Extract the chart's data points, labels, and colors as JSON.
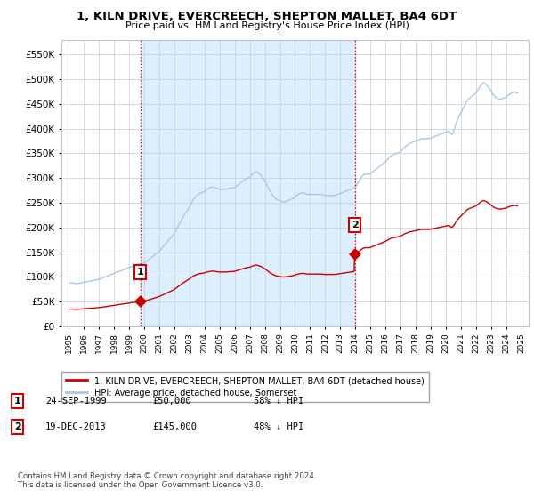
{
  "title": "1, KILN DRIVE, EVERCREECH, SHEPTON MALLET, BA4 6DT",
  "subtitle": "Price paid vs. HM Land Registry's House Price Index (HPI)",
  "sale1_year": 1999.73,
  "sale1_value": 50000,
  "sale2_year": 2013.96,
  "sale2_value": 145000,
  "hpi_color": "#a8c8e8",
  "sale_color": "#cc0000",
  "vline_color": "#cc0000",
  "fill_color": "#ddeeff",
  "ylim": [
    0,
    580000
  ],
  "yticks": [
    0,
    50000,
    100000,
    150000,
    200000,
    250000,
    300000,
    350000,
    400000,
    450000,
    500000,
    550000
  ],
  "ytick_labels": [
    "£0",
    "£50K",
    "£100K",
    "£150K",
    "£200K",
    "£250K",
    "£300K",
    "£350K",
    "£400K",
    "£450K",
    "£500K",
    "£550K"
  ],
  "xtick_years": [
    1995,
    1996,
    1997,
    1998,
    1999,
    2000,
    2001,
    2002,
    2003,
    2004,
    2005,
    2006,
    2007,
    2008,
    2009,
    2010,
    2011,
    2012,
    2013,
    2014,
    2015,
    2016,
    2017,
    2018,
    2019,
    2020,
    2021,
    2022,
    2023,
    2024,
    2025
  ],
  "legend_sale_label": "1, KILN DRIVE, EVERCREECH, SHEPTON MALLET, BA4 6DT (detached house)",
  "legend_hpi_label": "HPI: Average price, detached house, Somerset",
  "table_data": [
    {
      "num": "1",
      "date": "24-SEP-1999",
      "price": "£50,000",
      "hpi": "58% ↓ HPI"
    },
    {
      "num": "2",
      "date": "19-DEC-2013",
      "price": "£145,000",
      "hpi": "48% ↓ HPI"
    }
  ],
  "footnote": "Contains HM Land Registry data © Crown copyright and database right 2024.\nThis data is licensed under the Open Government Licence v3.0.",
  "bg_color": "#ffffff",
  "grid_color": "#cccccc",
  "hpi_monthly": [
    [
      1995.0,
      87000
    ],
    [
      1995.083,
      87500
    ],
    [
      1995.167,
      88000
    ],
    [
      1995.25,
      87500
    ],
    [
      1995.333,
      87000
    ],
    [
      1995.417,
      86500
    ],
    [
      1995.5,
      86000
    ],
    [
      1995.583,
      86500
    ],
    [
      1995.667,
      87000
    ],
    [
      1995.75,
      87500
    ],
    [
      1995.833,
      88000
    ],
    [
      1995.917,
      88500
    ],
    [
      1996.0,
      89000
    ],
    [
      1996.083,
      89500
    ],
    [
      1996.167,
      90000
    ],
    [
      1996.25,
      90500
    ],
    [
      1996.333,
      91000
    ],
    [
      1996.417,
      91500
    ],
    [
      1996.5,
      92000
    ],
    [
      1996.583,
      92500
    ],
    [
      1996.667,
      93000
    ],
    [
      1996.75,
      93500
    ],
    [
      1996.833,
      94000
    ],
    [
      1996.917,
      94500
    ],
    [
      1997.0,
      95000
    ],
    [
      1997.083,
      96000
    ],
    [
      1997.167,
      97000
    ],
    [
      1997.25,
      98000
    ],
    [
      1997.333,
      99000
    ],
    [
      1997.417,
      100000
    ],
    [
      1997.5,
      101000
    ],
    [
      1997.583,
      102000
    ],
    [
      1997.667,
      103000
    ],
    [
      1997.75,
      104000
    ],
    [
      1997.833,
      105000
    ],
    [
      1997.917,
      106000
    ],
    [
      1998.0,
      107000
    ],
    [
      1998.083,
      108000
    ],
    [
      1998.167,
      109000
    ],
    [
      1998.25,
      110000
    ],
    [
      1998.333,
      111000
    ],
    [
      1998.417,
      112000
    ],
    [
      1998.5,
      113000
    ],
    [
      1998.583,
      114000
    ],
    [
      1998.667,
      115000
    ],
    [
      1998.75,
      116000
    ],
    [
      1998.833,
      117000
    ],
    [
      1998.917,
      118000
    ],
    [
      1999.0,
      119000
    ],
    [
      1999.083,
      120000
    ],
    [
      1999.167,
      121000
    ],
    [
      1999.25,
      122000
    ],
    [
      1999.333,
      123000
    ],
    [
      1999.417,
      124000
    ],
    [
      1999.5,
      125000
    ],
    [
      1999.583,
      125500
    ],
    [
      1999.667,
      126000
    ],
    [
      1999.75,
      126500
    ],
    [
      1999.833,
      127000
    ],
    [
      1999.917,
      127500
    ],
    [
      2000.0,
      128000
    ],
    [
      2000.083,
      130000
    ],
    [
      2000.167,
      132000
    ],
    [
      2000.25,
      134000
    ],
    [
      2000.333,
      136000
    ],
    [
      2000.417,
      138000
    ],
    [
      2000.5,
      140000
    ],
    [
      2000.583,
      142000
    ],
    [
      2000.667,
      144000
    ],
    [
      2000.75,
      146000
    ],
    [
      2000.833,
      148000
    ],
    [
      2000.917,
      150000
    ],
    [
      2001.0,
      152000
    ],
    [
      2001.083,
      155000
    ],
    [
      2001.167,
      158000
    ],
    [
      2001.25,
      161000
    ],
    [
      2001.333,
      164000
    ],
    [
      2001.417,
      167000
    ],
    [
      2001.5,
      170000
    ],
    [
      2001.583,
      173000
    ],
    [
      2001.667,
      176000
    ],
    [
      2001.75,
      179000
    ],
    [
      2001.833,
      182000
    ],
    [
      2001.917,
      185000
    ],
    [
      2002.0,
      188000
    ],
    [
      2002.083,
      193000
    ],
    [
      2002.167,
      198000
    ],
    [
      2002.25,
      203000
    ],
    [
      2002.333,
      208000
    ],
    [
      2002.417,
      213000
    ],
    [
      2002.5,
      218000
    ],
    [
      2002.583,
      222000
    ],
    [
      2002.667,
      226000
    ],
    [
      2002.75,
      230000
    ],
    [
      2002.833,
      234000
    ],
    [
      2002.917,
      238000
    ],
    [
      2003.0,
      242000
    ],
    [
      2003.083,
      247000
    ],
    [
      2003.167,
      252000
    ],
    [
      2003.25,
      257000
    ],
    [
      2003.333,
      260000
    ],
    [
      2003.417,
      263000
    ],
    [
      2003.5,
      265000
    ],
    [
      2003.583,
      267000
    ],
    [
      2003.667,
      269000
    ],
    [
      2003.75,
      270000
    ],
    [
      2003.833,
      271000
    ],
    [
      2003.917,
      272000
    ],
    [
      2004.0,
      273000
    ],
    [
      2004.083,
      275000
    ],
    [
      2004.167,
      277000
    ],
    [
      2004.25,
      279000
    ],
    [
      2004.333,
      280000
    ],
    [
      2004.417,
      281000
    ],
    [
      2004.5,
      282000
    ],
    [
      2004.583,
      282000
    ],
    [
      2004.667,
      281000
    ],
    [
      2004.75,
      280000
    ],
    [
      2004.833,
      279000
    ],
    [
      2004.917,
      278000
    ],
    [
      2005.0,
      277000
    ],
    [
      2005.083,
      277000
    ],
    [
      2005.167,
      277000
    ],
    [
      2005.25,
      277000
    ],
    [
      2005.333,
      277000
    ],
    [
      2005.417,
      277500
    ],
    [
      2005.5,
      278000
    ],
    [
      2005.583,
      278500
    ],
    [
      2005.667,
      279000
    ],
    [
      2005.75,
      279500
    ],
    [
      2005.833,
      280000
    ],
    [
      2005.917,
      280500
    ],
    [
      2006.0,
      281000
    ],
    [
      2006.083,
      283000
    ],
    [
      2006.167,
      285000
    ],
    [
      2006.25,
      287000
    ],
    [
      2006.333,
      289000
    ],
    [
      2006.417,
      291000
    ],
    [
      2006.5,
      293000
    ],
    [
      2006.583,
      295000
    ],
    [
      2006.667,
      297000
    ],
    [
      2006.75,
      299000
    ],
    [
      2006.833,
      300000
    ],
    [
      2006.917,
      301000
    ],
    [
      2007.0,
      302000
    ],
    [
      2007.083,
      305000
    ],
    [
      2007.167,
      308000
    ],
    [
      2007.25,
      310000
    ],
    [
      2007.333,
      312000
    ],
    [
      2007.417,
      313000
    ],
    [
      2007.5,
      312000
    ],
    [
      2007.583,
      310000
    ],
    [
      2007.667,
      308000
    ],
    [
      2007.75,
      305000
    ],
    [
      2007.833,
      302000
    ],
    [
      2007.917,
      298000
    ],
    [
      2008.0,
      294000
    ],
    [
      2008.083,
      289000
    ],
    [
      2008.167,
      284000
    ],
    [
      2008.25,
      279000
    ],
    [
      2008.333,
      274000
    ],
    [
      2008.417,
      270000
    ],
    [
      2008.5,
      266000
    ],
    [
      2008.583,
      263000
    ],
    [
      2008.667,
      260000
    ],
    [
      2008.75,
      258000
    ],
    [
      2008.833,
      256000
    ],
    [
      2008.917,
      255000
    ],
    [
      2009.0,
      254000
    ],
    [
      2009.083,
      253000
    ],
    [
      2009.167,
      252000
    ],
    [
      2009.25,
      252000
    ],
    [
      2009.333,
      252000
    ],
    [
      2009.417,
      253000
    ],
    [
      2009.5,
      254000
    ],
    [
      2009.583,
      255000
    ],
    [
      2009.667,
      256000
    ],
    [
      2009.75,
      257000
    ],
    [
      2009.833,
      258000
    ],
    [
      2009.917,
      260000
    ],
    [
      2010.0,
      262000
    ],
    [
      2010.083,
      264000
    ],
    [
      2010.167,
      266000
    ],
    [
      2010.25,
      268000
    ],
    [
      2010.333,
      269000
    ],
    [
      2010.417,
      270000
    ],
    [
      2010.5,
      270000
    ],
    [
      2010.583,
      270000
    ],
    [
      2010.667,
      269000
    ],
    [
      2010.75,
      268000
    ],
    [
      2010.833,
      267000
    ],
    [
      2010.917,
      267000
    ],
    [
      2011.0,
      267000
    ],
    [
      2011.083,
      267000
    ],
    [
      2011.167,
      267000
    ],
    [
      2011.25,
      267000
    ],
    [
      2011.333,
      267000
    ],
    [
      2011.417,
      267000
    ],
    [
      2011.5,
      267000
    ],
    [
      2011.583,
      267000
    ],
    [
      2011.667,
      267000
    ],
    [
      2011.75,
      267000
    ],
    [
      2011.833,
      266000
    ],
    [
      2011.917,
      265000
    ],
    [
      2012.0,
      265000
    ],
    [
      2012.083,
      265000
    ],
    [
      2012.167,
      265000
    ],
    [
      2012.25,
      265000
    ],
    [
      2012.333,
      265000
    ],
    [
      2012.417,
      265000
    ],
    [
      2012.5,
      265000
    ],
    [
      2012.583,
      265000
    ],
    [
      2012.667,
      265000
    ],
    [
      2012.75,
      266000
    ],
    [
      2012.833,
      267000
    ],
    [
      2012.917,
      268000
    ],
    [
      2013.0,
      269000
    ],
    [
      2013.083,
      270000
    ],
    [
      2013.167,
      271000
    ],
    [
      2013.25,
      272000
    ],
    [
      2013.333,
      273000
    ],
    [
      2013.417,
      274000
    ],
    [
      2013.5,
      275000
    ],
    [
      2013.583,
      276000
    ],
    [
      2013.667,
      277000
    ],
    [
      2013.75,
      278000
    ],
    [
      2013.833,
      279000
    ],
    [
      2013.917,
      280000
    ],
    [
      2014.0,
      282000
    ],
    [
      2014.083,
      286000
    ],
    [
      2014.167,
      290000
    ],
    [
      2014.25,
      294000
    ],
    [
      2014.333,
      298000
    ],
    [
      2014.417,
      302000
    ],
    [
      2014.5,
      305000
    ],
    [
      2014.583,
      307000
    ],
    [
      2014.667,
      308000
    ],
    [
      2014.75,
      308000
    ],
    [
      2014.833,
      308000
    ],
    [
      2014.917,
      308000
    ],
    [
      2015.0,
      309000
    ],
    [
      2015.083,
      311000
    ],
    [
      2015.167,
      313000
    ],
    [
      2015.25,
      315000
    ],
    [
      2015.333,
      317000
    ],
    [
      2015.417,
      319000
    ],
    [
      2015.5,
      321000
    ],
    [
      2015.583,
      323000
    ],
    [
      2015.667,
      325000
    ],
    [
      2015.75,
      327000
    ],
    [
      2015.833,
      329000
    ],
    [
      2015.917,
      331000
    ],
    [
      2016.0,
      333000
    ],
    [
      2016.083,
      336000
    ],
    [
      2016.167,
      339000
    ],
    [
      2016.25,
      342000
    ],
    [
      2016.333,
      344000
    ],
    [
      2016.417,
      346000
    ],
    [
      2016.5,
      347000
    ],
    [
      2016.583,
      348000
    ],
    [
      2016.667,
      349000
    ],
    [
      2016.75,
      350000
    ],
    [
      2016.833,
      351000
    ],
    [
      2016.917,
      352000
    ],
    [
      2017.0,
      353000
    ],
    [
      2017.083,
      356000
    ],
    [
      2017.167,
      359000
    ],
    [
      2017.25,
      362000
    ],
    [
      2017.333,
      364000
    ],
    [
      2017.417,
      366000
    ],
    [
      2017.5,
      368000
    ],
    [
      2017.583,
      370000
    ],
    [
      2017.667,
      371000
    ],
    [
      2017.75,
      372000
    ],
    [
      2017.833,
      373000
    ],
    [
      2017.917,
      374000
    ],
    [
      2018.0,
      375000
    ],
    [
      2018.083,
      376000
    ],
    [
      2018.167,
      377000
    ],
    [
      2018.25,
      378000
    ],
    [
      2018.333,
      379000
    ],
    [
      2018.417,
      380000
    ],
    [
      2018.5,
      380000
    ],
    [
      2018.583,
      380000
    ],
    [
      2018.667,
      380000
    ],
    [
      2018.75,
      380000
    ],
    [
      2018.833,
      380000
    ],
    [
      2018.917,
      380000
    ],
    [
      2019.0,
      381000
    ],
    [
      2019.083,
      382000
    ],
    [
      2019.167,
      383000
    ],
    [
      2019.25,
      384000
    ],
    [
      2019.333,
      385000
    ],
    [
      2019.417,
      386000
    ],
    [
      2019.5,
      387000
    ],
    [
      2019.583,
      388000
    ],
    [
      2019.667,
      389000
    ],
    [
      2019.75,
      390000
    ],
    [
      2019.833,
      391000
    ],
    [
      2019.917,
      392000
    ],
    [
      2020.0,
      393000
    ],
    [
      2020.083,
      394000
    ],
    [
      2020.167,
      395000
    ],
    [
      2020.25,
      393000
    ],
    [
      2020.333,
      390000
    ],
    [
      2020.417,
      388000
    ],
    [
      2020.5,
      393000
    ],
    [
      2020.583,
      400000
    ],
    [
      2020.667,
      408000
    ],
    [
      2020.75,
      416000
    ],
    [
      2020.833,
      422000
    ],
    [
      2020.917,
      427000
    ],
    [
      2021.0,
      432000
    ],
    [
      2021.083,
      437000
    ],
    [
      2021.167,
      442000
    ],
    [
      2021.25,
      447000
    ],
    [
      2021.333,
      452000
    ],
    [
      2021.417,
      457000
    ],
    [
      2021.5,
      460000
    ],
    [
      2021.583,
      462000
    ],
    [
      2021.667,
      464000
    ],
    [
      2021.75,
      466000
    ],
    [
      2021.833,
      468000
    ],
    [
      2021.917,
      470000
    ],
    [
      2022.0,
      472000
    ],
    [
      2022.083,
      476000
    ],
    [
      2022.167,
      480000
    ],
    [
      2022.25,
      484000
    ],
    [
      2022.333,
      488000
    ],
    [
      2022.417,
      491000
    ],
    [
      2022.5,
      493000
    ],
    [
      2022.583,
      492000
    ],
    [
      2022.667,
      490000
    ],
    [
      2022.75,
      487000
    ],
    [
      2022.833,
      484000
    ],
    [
      2022.917,
      480000
    ],
    [
      2023.0,
      476000
    ],
    [
      2023.083,
      472000
    ],
    [
      2023.167,
      468000
    ],
    [
      2023.25,
      465000
    ],
    [
      2023.333,
      463000
    ],
    [
      2023.417,
      461000
    ],
    [
      2023.5,
      460000
    ],
    [
      2023.583,
      460000
    ],
    [
      2023.667,
      460000
    ],
    [
      2023.75,
      461000
    ],
    [
      2023.833,
      462000
    ],
    [
      2023.917,
      463000
    ],
    [
      2024.0,
      464000
    ],
    [
      2024.083,
      466000
    ],
    [
      2024.167,
      468000
    ],
    [
      2024.25,
      470000
    ],
    [
      2024.333,
      472000
    ],
    [
      2024.417,
      473000
    ],
    [
      2024.5,
      474000
    ],
    [
      2024.583,
      474000
    ],
    [
      2024.667,
      473000
    ],
    [
      2024.75,
      472000
    ]
  ]
}
